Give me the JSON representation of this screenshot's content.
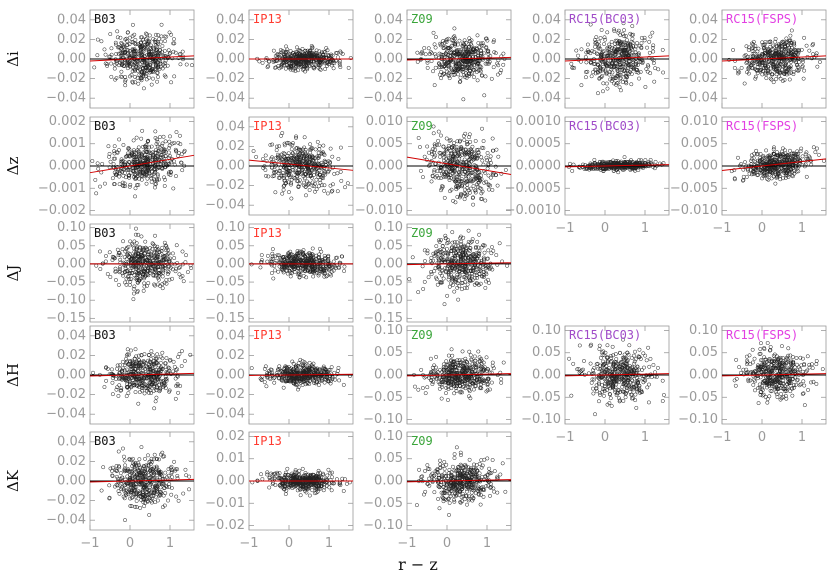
{
  "chart_data": {
    "type": "scatter",
    "title": "",
    "xlabel": "r − z",
    "xlim": [
      -1,
      1.6
    ],
    "xticks": [
      "−1",
      "0",
      "1"
    ],
    "colors": {
      "B03": "#111111",
      "IP13": "#ff3b30",
      "Z09": "#3aa53a",
      "RC15(BC03)": "#a04bc8",
      "RC15(FSPS)": "#e23fe2",
      "fit": "#d00000",
      "axis": "#9a9a9a"
    },
    "rows": [
      {
        "ylabel": "Δi",
        "ylim": [
          -0.05,
          0.05
        ],
        "yticks": [
          "0.04",
          "0.02",
          "0.00",
          "−0.02",
          "−0.04"
        ],
        "yticks_val": [
          0.04,
          0.02,
          0.0,
          -0.02,
          -0.04
        ],
        "panels": [
          {
            "model": "B03",
            "spread": 0.012,
            "slope": 0.002,
            "intercept": 0.0
          },
          {
            "model": "IP13",
            "spread": 0.005,
            "slope": 0.0,
            "intercept": 0.0
          },
          {
            "model": "Z09",
            "spread": 0.01,
            "slope": 0.001,
            "intercept": 0.0
          },
          {
            "model": "RC15(BC03)",
            "spread": 0.012,
            "slope": 0.002,
            "intercept": 0.0
          },
          {
            "model": "RC15(FSPS)",
            "spread": 0.01,
            "slope": 0.002,
            "intercept": 0.0
          }
        ]
      },
      {
        "ylabel": "Δz",
        "panels": [
          {
            "model": "B03",
            "ylim": [
              -0.0022,
              0.0022
            ],
            "yticks": [
              "0.002",
              "0.001",
              "0.000",
              "−0.001",
              "−0.002"
            ],
            "yticks_val": [
              0.002,
              0.001,
              0.0,
              -0.001,
              -0.002
            ],
            "spread": 0.0005,
            "slope": 0.0003,
            "intercept": 0.0
          },
          {
            "model": "IP13",
            "ylim": [
              -0.05,
              0.05
            ],
            "yticks": [
              "0.04",
              "0.02",
              "0.00",
              "−0.02",
              "−0.04"
            ],
            "yticks_val": [
              0.04,
              0.02,
              0.0,
              -0.02,
              -0.04
            ],
            "spread": 0.012,
            "slope": -0.004,
            "intercept": 0.002
          },
          {
            "model": "Z09",
            "ylim": [
              -0.011,
              0.011
            ],
            "yticks": [
              "0.010",
              "0.005",
              "0.000",
              "−0.005",
              "−0.010"
            ],
            "yticks_val": [
              0.01,
              0.005,
              0.0,
              -0.005,
              -0.01
            ],
            "spread": 0.0035,
            "slope": -0.0015,
            "intercept": 0.0005
          },
          {
            "model": "RC15(BC03)",
            "ylim": [
              -0.0011,
              0.0011
            ],
            "yticks": [
              "0.0010",
              "0.0005",
              "0.0000",
              "−0.0005",
              "−0.0010"
            ],
            "yticks_val": [
              0.001,
              0.0005,
              0.0,
              -0.0005,
              -0.001
            ],
            "spread": 5e-05,
            "slope": 2e-05,
            "intercept": 0.0
          },
          {
            "model": "RC15(FSPS)",
            "ylim": [
              -0.011,
              0.011
            ],
            "yticks": [
              "0.010",
              "0.005",
              "0.000",
              "−0.005",
              "−0.010"
            ],
            "yticks_val": [
              0.01,
              0.005,
              0.0,
              -0.005,
              -0.01
            ],
            "spread": 0.0015,
            "slope": 0.001,
            "intercept": 0.0
          }
        ]
      },
      {
        "ylabel": "ΔJ",
        "ylim": [
          -0.16,
          0.11
        ],
        "yticks": [
          "0.10",
          "0.05",
          "0.00",
          "−0.05",
          "−0.10",
          "−0.15"
        ],
        "yticks_val": [
          0.1,
          0.05,
          0.0,
          -0.05,
          -0.1,
          -0.15
        ],
        "panels": [
          {
            "model": "B03",
            "spread": 0.03,
            "slope": 0.0,
            "intercept": 0.0
          },
          {
            "model": "IP13",
            "spread": 0.015,
            "slope": 0.0,
            "intercept": 0.0
          },
          {
            "model": "Z09",
            "spread": 0.035,
            "slope": 0.002,
            "intercept": 0.0
          }
        ]
      },
      {
        "ylabel": "ΔH",
        "panels": [
          {
            "model": "B03",
            "ylim": [
              -0.05,
              0.05
            ],
            "yticks": [
              "0.04",
              "0.02",
              "0.00",
              "−0.02",
              "−0.04"
            ],
            "yticks_val": [
              0.04,
              0.02,
              0.0,
              -0.02,
              -0.04
            ],
            "spread": 0.01,
            "slope": 0.001,
            "intercept": 0.0
          },
          {
            "model": "IP13",
            "ylim": [
              -0.05,
              0.05
            ],
            "yticks": [
              "0.04",
              "0.02",
              "0.00",
              "−0.02",
              "−0.04"
            ],
            "yticks_val": [
              0.04,
              0.02,
              0.0,
              -0.02,
              -0.04
            ],
            "spread": 0.005,
            "slope": 0.0005,
            "intercept": 0.0
          },
          {
            "model": "Z09",
            "ylim": [
              -0.11,
              0.11
            ],
            "yticks": [
              "0.10",
              "0.05",
              "0.00",
              "−0.05",
              "−0.10"
            ],
            "yticks_val": [
              0.1,
              0.05,
              0.0,
              -0.05,
              -0.1
            ],
            "spread": 0.02,
            "slope": 0.002,
            "intercept": 0.0
          },
          {
            "model": "RC15(BC03)",
            "ylim": [
              -0.11,
              0.11
            ],
            "yticks": [
              "0.10",
              "0.05",
              "0.00",
              "−0.05",
              "−0.10"
            ],
            "yticks_val": [
              0.1,
              0.05,
              0.0,
              -0.05,
              -0.1
            ],
            "spread": 0.028,
            "slope": 0.002,
            "intercept": 0.0
          },
          {
            "model": "RC15(FSPS)",
            "ylim": [
              -0.11,
              0.11
            ],
            "yticks": [
              "0.10",
              "0.05",
              "0.00",
              "−0.05",
              "−0.10"
            ],
            "yticks_val": [
              0.1,
              0.05,
              0.0,
              -0.05,
              -0.1
            ],
            "spread": 0.025,
            "slope": 0.002,
            "intercept": 0.0
          }
        ]
      },
      {
        "ylabel": "ΔK",
        "panels": [
          {
            "model": "B03",
            "ylim": [
              -0.05,
              0.05
            ],
            "yticks": [
              "0.04",
              "0.02",
              "0.00",
              "−0.02",
              "−0.04"
            ],
            "yticks_val": [
              0.04,
              0.02,
              0.0,
              -0.02,
              -0.04
            ],
            "spread": 0.012,
            "slope": 0.001,
            "intercept": 0.0
          },
          {
            "model": "IP13",
            "ylim": [
              -0.022,
              0.022
            ],
            "yticks": [
              "0.02",
              "0.01",
              "0.00",
              "−0.01",
              "−0.02"
            ],
            "yticks_val": [
              0.02,
              0.01,
              0.0,
              -0.01,
              -0.02
            ],
            "spread": 0.002,
            "slope": 0.0,
            "intercept": 0.0
          },
          {
            "model": "Z09",
            "ylim": [
              -0.11,
              0.11
            ],
            "yticks": [
              "0.10",
              "0.05",
              "0.00",
              "−0.05",
              "−0.10"
            ],
            "yticks_val": [
              0.1,
              0.05,
              0.0,
              -0.05,
              -0.1
            ],
            "spread": 0.022,
            "slope": 0.002,
            "intercept": 0.0
          }
        ]
      }
    ]
  }
}
